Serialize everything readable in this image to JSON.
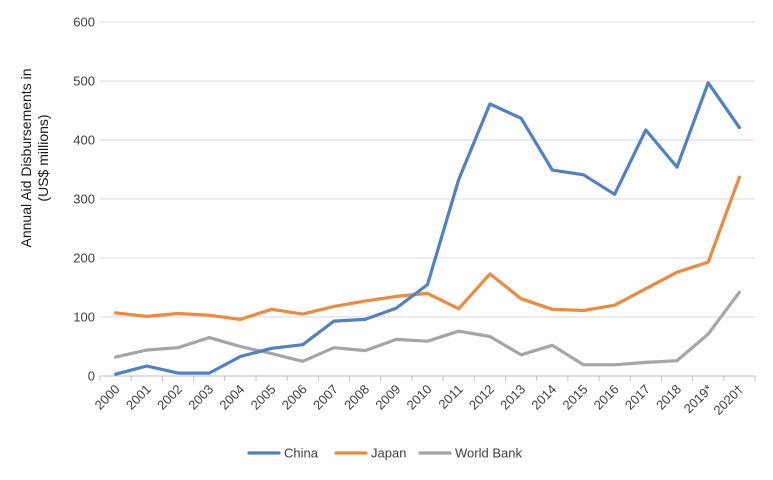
{
  "chart_data": {
    "type": "line",
    "title": "",
    "xlabel": "",
    "ylabel_lines": [
      "Annual Aid Disbursements in",
      "(US$ millions)"
    ],
    "ylim": [
      0,
      600
    ],
    "yticks": [
      0,
      100,
      200,
      300,
      400,
      500,
      600
    ],
    "grid": true,
    "legend_position": "bottom",
    "categories": [
      "2000",
      "2001",
      "2002",
      "2003",
      "2004",
      "2005",
      "2006",
      "2007",
      "2008",
      "2009",
      "2010",
      "2011",
      "2012",
      "2013",
      "2014",
      "2015",
      "2016",
      "2017",
      "2018",
      "2019*",
      "2020†"
    ],
    "series": [
      {
        "name": "China",
        "color": "#4f81c4",
        "values": [
          3,
          17,
          5,
          5,
          33,
          47,
          53,
          93,
          96,
          115,
          155,
          333,
          461,
          437,
          349,
          341,
          308,
          417,
          354,
          497,
          421
        ]
      },
      {
        "name": "Japan",
        "color": "#ed8a3e",
        "values": [
          107,
          101,
          106,
          103,
          96,
          113,
          105,
          118,
          127,
          135,
          140,
          114,
          173,
          131,
          113,
          111,
          120,
          148,
          176,
          193,
          337
        ]
      },
      {
        "name": "World Bank",
        "color": "#a5a5a5",
        "values": [
          32,
          44,
          48,
          65,
          50,
          38,
          25,
          48,
          43,
          62,
          59,
          76,
          67,
          36,
          52,
          19,
          19,
          23,
          26,
          71,
          142
        ]
      }
    ]
  }
}
